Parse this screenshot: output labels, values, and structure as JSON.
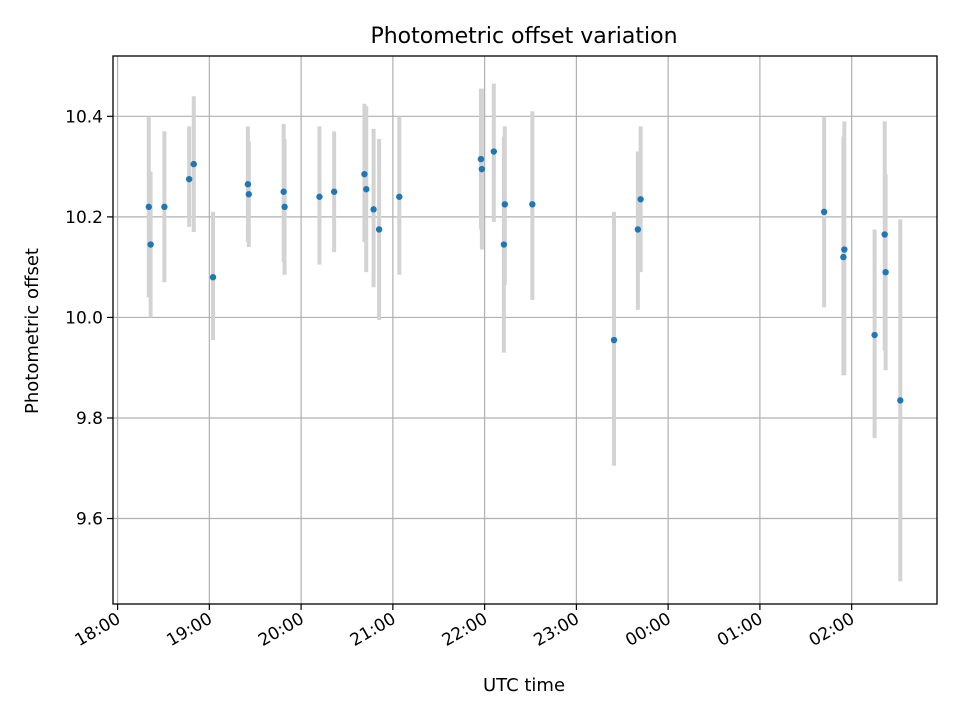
{
  "chart_data": {
    "type": "scatter",
    "title": "Photometric offset variation",
    "xlabel": "UTC time",
    "ylabel": "Photometric offset",
    "x_unit": "hours since 18:00",
    "xlim": [
      -0.05,
      8.93
    ],
    "ylim": [
      9.43,
      10.52
    ],
    "grid": true,
    "x_ticks": [
      {
        "value": 0,
        "label": "18:00"
      },
      {
        "value": 1,
        "label": "19:00"
      },
      {
        "value": 2,
        "label": "20:00"
      },
      {
        "value": 3,
        "label": "21:00"
      },
      {
        "value": 4,
        "label": "22:00"
      },
      {
        "value": 5,
        "label": "23:00"
      },
      {
        "value": 6,
        "label": "00:00"
      },
      {
        "value": 7,
        "label": "01:00"
      },
      {
        "value": 8,
        "label": "02:00"
      }
    ],
    "y_ticks": [
      {
        "value": 9.6,
        "label": "9.6"
      },
      {
        "value": 9.8,
        "label": "9.8"
      },
      {
        "value": 10.0,
        "label": "10.0"
      },
      {
        "value": 10.2,
        "label": "10.2"
      },
      {
        "value": 10.4,
        "label": "10.4"
      }
    ],
    "points": [
      {
        "x": 0.34,
        "y": 10.22,
        "lo": 10.04,
        "hi": 10.4
      },
      {
        "x": 0.36,
        "y": 10.145,
        "lo": 10.0,
        "hi": 10.29
      },
      {
        "x": 0.51,
        "y": 10.22,
        "lo": 10.07,
        "hi": 10.37
      },
      {
        "x": 0.78,
        "y": 10.275,
        "lo": 10.18,
        "hi": 10.38
      },
      {
        "x": 0.83,
        "y": 10.305,
        "lo": 10.17,
        "hi": 10.44
      },
      {
        "x": 1.04,
        "y": 10.08,
        "lo": 9.955,
        "hi": 10.21
      },
      {
        "x": 1.42,
        "y": 10.265,
        "lo": 10.15,
        "hi": 10.38
      },
      {
        "x": 1.43,
        "y": 10.245,
        "lo": 10.14,
        "hi": 10.35
      },
      {
        "x": 1.81,
        "y": 10.25,
        "lo": 10.11,
        "hi": 10.385
      },
      {
        "x": 1.82,
        "y": 10.22,
        "lo": 10.085,
        "hi": 10.355
      },
      {
        "x": 2.2,
        "y": 10.24,
        "lo": 10.105,
        "hi": 10.38
      },
      {
        "x": 2.36,
        "y": 10.25,
        "lo": 10.13,
        "hi": 10.37
      },
      {
        "x": 2.69,
        "y": 10.285,
        "lo": 10.15,
        "hi": 10.425
      },
      {
        "x": 2.71,
        "y": 10.255,
        "lo": 10.09,
        "hi": 10.42
      },
      {
        "x": 2.79,
        "y": 10.215,
        "lo": 10.06,
        "hi": 10.375
      },
      {
        "x": 2.85,
        "y": 10.175,
        "lo": 9.995,
        "hi": 10.355
      },
      {
        "x": 3.07,
        "y": 10.24,
        "lo": 10.085,
        "hi": 10.4
      },
      {
        "x": 3.96,
        "y": 10.315,
        "lo": 10.175,
        "hi": 10.455
      },
      {
        "x": 3.97,
        "y": 10.295,
        "lo": 10.135,
        "hi": 10.455
      },
      {
        "x": 4.1,
        "y": 10.33,
        "lo": 10.19,
        "hi": 10.465
      },
      {
        "x": 4.21,
        "y": 10.145,
        "lo": 9.93,
        "hi": 10.36
      },
      {
        "x": 4.22,
        "y": 10.225,
        "lo": 10.065,
        "hi": 10.38
      },
      {
        "x": 4.52,
        "y": 10.225,
        "lo": 10.035,
        "hi": 10.41
      },
      {
        "x": 5.41,
        "y": 9.955,
        "lo": 9.705,
        "hi": 10.21
      },
      {
        "x": 5.67,
        "y": 10.175,
        "lo": 10.015,
        "hi": 10.33
      },
      {
        "x": 5.7,
        "y": 10.235,
        "lo": 10.09,
        "hi": 10.38
      },
      {
        "x": 7.7,
        "y": 10.21,
        "lo": 10.02,
        "hi": 10.4
      },
      {
        "x": 7.91,
        "y": 10.12,
        "lo": 9.885,
        "hi": 10.36
      },
      {
        "x": 7.92,
        "y": 10.135,
        "lo": 9.885,
        "hi": 10.39
      },
      {
        "x": 8.25,
        "y": 9.965,
        "lo": 9.76,
        "hi": 10.175
      },
      {
        "x": 8.36,
        "y": 10.165,
        "lo": 9.935,
        "hi": 10.39
      },
      {
        "x": 8.37,
        "y": 10.09,
        "lo": 9.895,
        "hi": 10.285
      },
      {
        "x": 8.53,
        "y": 9.835,
        "lo": 9.475,
        "hi": 10.195
      }
    ]
  },
  "colors": {
    "marker": "#1f77b4",
    "errorbar": "#d3d3d3",
    "grid": "#b0b0b0"
  }
}
